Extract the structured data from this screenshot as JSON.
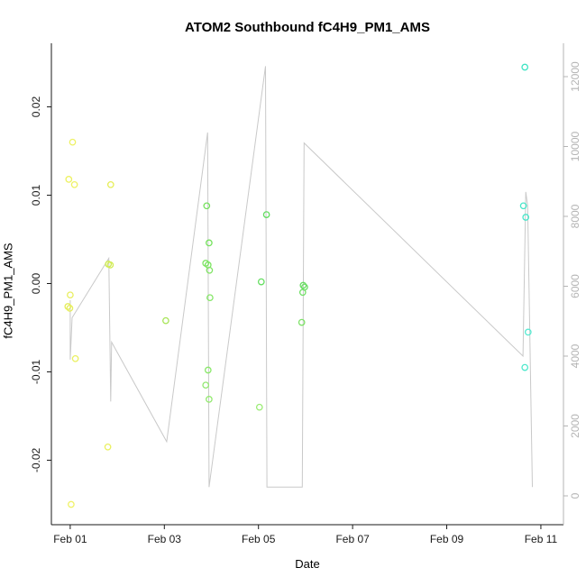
{
  "chart_data": {
    "type": "scatter",
    "title": "ATOM2 Southbound fC4H9_PM1_AMS",
    "xlabel": "Date",
    "ylabel": "fC4H9_PM1_AMS",
    "x_ticks": {
      "values": [
        1,
        3,
        5,
        7,
        9,
        11
      ],
      "labels": [
        "Feb 01",
        "Feb 03",
        "Feb 05",
        "Feb 07",
        "Feb 09",
        "Feb 11"
      ]
    },
    "y_ticks": {
      "values": [
        -0.02,
        -0.01,
        0,
        0.01,
        0.02
      ],
      "labels": [
        "-0.02",
        "-0.01",
        "0.00",
        "0.01",
        "0.02"
      ]
    },
    "y2_ticks": {
      "values": [
        0,
        2000,
        4000,
        6000,
        8000,
        10000,
        12000
      ],
      "labels": [
        "0",
        "2000",
        "4000",
        "6000",
        "8000",
        "10000",
        "12000"
      ]
    },
    "xlim": [
      0.6,
      11.48
    ],
    "ylim": [
      -0.0273,
      0.0272
    ],
    "y2lim": [
      -826,
      12955
    ],
    "legend_position": "none",
    "grid": false,
    "colors": {
      "secondary_line": "#c9c9c9",
      "axis": "#1a1a1a",
      "right_axis": "#b4b4b4",
      "point_low": "#eef164",
      "point_mid": "#6ade64",
      "point_high": "#46e6c8"
    },
    "points": [
      {
        "x": 1.05,
        "y": 0.016,
        "c": "#eef164"
      },
      {
        "x": 0.97,
        "y": 0.0118,
        "c": "#edf160"
      },
      {
        "x": 1.09,
        "y": 0.0112,
        "c": "#eef164"
      },
      {
        "x": 1.0,
        "y": -0.0013,
        "c": "#e8ee5e"
      },
      {
        "x": 0.95,
        "y": -0.0026,
        "c": "#e4ec58"
      },
      {
        "x": 0.99,
        "y": -0.0028,
        "c": "#e6ee5a"
      },
      {
        "x": 1.11,
        "y": -0.0085,
        "c": "#eaf05e"
      },
      {
        "x": 1.02,
        "y": -0.025,
        "c": "#f0f26a"
      },
      {
        "x": 1.86,
        "y": 0.0112,
        "c": "#e6ee56"
      },
      {
        "x": 1.81,
        "y": 0.0022,
        "c": "#cdea50"
      },
      {
        "x": 1.85,
        "y": 0.0021,
        "c": "#d2ec54"
      },
      {
        "x": 1.8,
        "y": -0.0185,
        "c": "#eaf05e"
      },
      {
        "x": 3.03,
        "y": -0.0042,
        "c": "#a6e455"
      },
      {
        "x": 3.9,
        "y": 0.0088,
        "c": "#74e05c"
      },
      {
        "x": 3.95,
        "y": 0.0046,
        "c": "#76e25e"
      },
      {
        "x": 3.88,
        "y": 0.0023,
        "c": "#7ce462"
      },
      {
        "x": 3.93,
        "y": 0.0021,
        "c": "#7ce462"
      },
      {
        "x": 3.96,
        "y": 0.0015,
        "c": "#80e464"
      },
      {
        "x": 3.97,
        "y": -0.0016,
        "c": "#84e666"
      },
      {
        "x": 3.93,
        "y": -0.0098,
        "c": "#8ae86a"
      },
      {
        "x": 3.88,
        "y": -0.0115,
        "c": "#90e86e"
      },
      {
        "x": 3.95,
        "y": -0.0131,
        "c": "#94ea70"
      },
      {
        "x": 5.17,
        "y": 0.0078,
        "c": "#62de60"
      },
      {
        "x": 5.06,
        "y": 0.0002,
        "c": "#66de62"
      },
      {
        "x": 5.02,
        "y": -0.014,
        "c": "#9aec74"
      },
      {
        "x": 5.95,
        "y": -0.0002,
        "c": "#6ade64"
      },
      {
        "x": 5.98,
        "y": -0.0004,
        "c": "#6ade64"
      },
      {
        "x": 5.94,
        "y": -0.001,
        "c": "#70e066"
      },
      {
        "x": 5.92,
        "y": -0.0044,
        "c": "#7ee268"
      },
      {
        "x": 10.66,
        "y": 0.0245,
        "c": "#3fe4c4"
      },
      {
        "x": 10.63,
        "y": 0.0088,
        "c": "#46e6c8"
      },
      {
        "x": 10.68,
        "y": 0.0075,
        "c": "#4ae6ca"
      },
      {
        "x": 10.73,
        "y": -0.0055,
        "c": "#58ead2"
      },
      {
        "x": 10.66,
        "y": -0.0095,
        "c": "#4ee8cc"
      }
    ],
    "line_axis": "right",
    "line_points": [
      [
        1.0,
        5600
      ],
      [
        1.0,
        3900
      ],
      [
        1.04,
        5100
      ],
      [
        1.82,
        6800
      ],
      [
        1.86,
        2700
      ],
      [
        1.88,
        4400
      ],
      [
        3.05,
        1550
      ],
      [
        3.92,
        10400
      ],
      [
        3.95,
        250
      ],
      [
        5.15,
        12300
      ],
      [
        5.18,
        250
      ],
      [
        5.93,
        250
      ],
      [
        5.97,
        10100
      ],
      [
        10.62,
        4000
      ],
      [
        10.68,
        8700
      ],
      [
        10.72,
        8300
      ],
      [
        10.82,
        250
      ]
    ]
  }
}
